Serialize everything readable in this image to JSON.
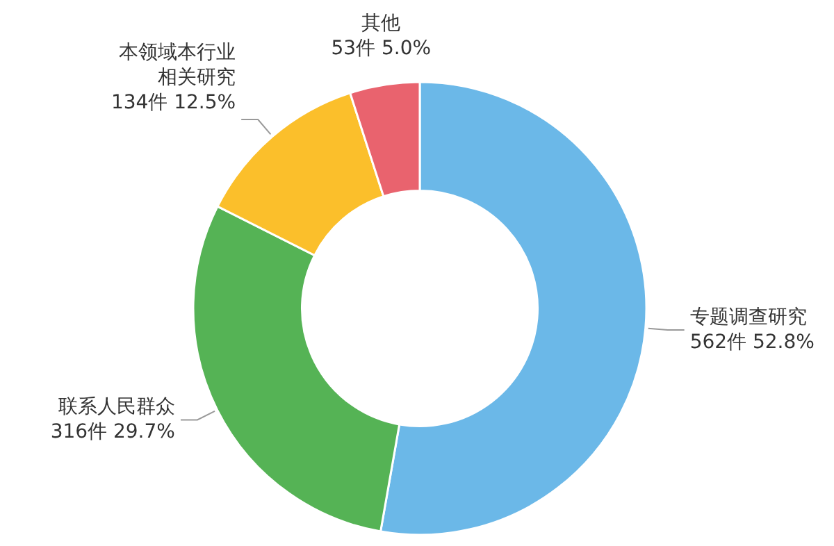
{
  "chart_data": {
    "type": "donut",
    "categories": [
      "专题调查研究",
      "联系人民群众",
      "本领域本行业相关研究",
      "其他"
    ],
    "values": [
      562,
      316,
      134,
      53
    ],
    "value_labels": [
      "562件 52.8%",
      "316件 29.7%",
      "134件 12.5%",
      "53件 5.0%"
    ],
    "colors": [
      "#6bb8e8",
      "#55b355",
      "#fbbf2b",
      "#e9636e"
    ]
  }
}
